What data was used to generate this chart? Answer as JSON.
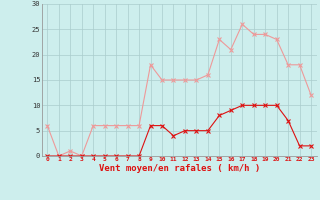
{
  "x": [
    0,
    1,
    2,
    3,
    4,
    5,
    6,
    7,
    8,
    9,
    10,
    11,
    12,
    13,
    14,
    15,
    16,
    17,
    18,
    19,
    20,
    21,
    22,
    23
  ],
  "y_mean": [
    0,
    0,
    0,
    0,
    0,
    0,
    0,
    0,
    0,
    6,
    6,
    4,
    5,
    5,
    5,
    8,
    9,
    10,
    10,
    10,
    10,
    7,
    2,
    2
  ],
  "y_gusts": [
    6,
    0,
    1,
    0,
    6,
    6,
    6,
    6,
    6,
    18,
    15,
    15,
    15,
    15,
    16,
    23,
    21,
    26,
    24,
    24,
    23,
    18,
    18,
    12
  ],
  "bg_color": "#cdeeed",
  "grid_color": "#aacccc",
  "line_mean_color": "#dd1111",
  "line_gust_color": "#ee9999",
  "xlabel": "Vent moyen/en rafales ( km/h )",
  "ylim": [
    0,
    30
  ],
  "xlim_min": -0.5,
  "xlim_max": 23.5,
  "yticks": [
    0,
    5,
    10,
    15,
    20,
    25,
    30
  ],
  "xticks": [
    0,
    1,
    2,
    3,
    4,
    5,
    6,
    7,
    8,
    9,
    10,
    11,
    12,
    13,
    14,
    15,
    16,
    17,
    18,
    19,
    20,
    21,
    22,
    23
  ]
}
